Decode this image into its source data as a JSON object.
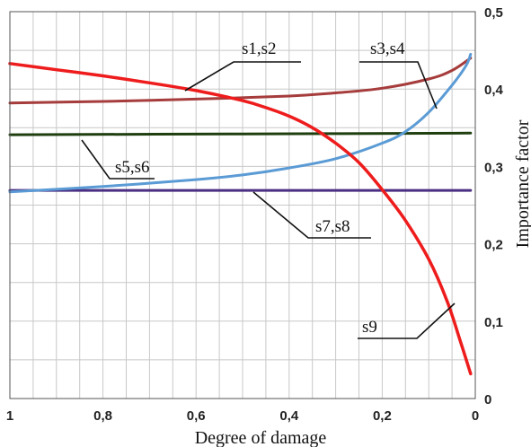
{
  "chart_data": {
    "type": "line",
    "xlabel": "Degree of damage",
    "ylabel": "Importance factor",
    "xlim": [
      1,
      0
    ],
    "ylim": [
      0,
      0.5
    ],
    "x_ticks": [
      "1",
      "0,8",
      "0,6",
      "0,4",
      "0,2",
      "0"
    ],
    "y_ticks": [
      "0",
      "0,1",
      "0,2",
      "0,3",
      "0,4",
      "0,5"
    ],
    "grid": true,
    "series": [
      {
        "name": "s1,s2",
        "color": "#ee1c1c",
        "x": [
          1,
          0.9,
          0.8,
          0.7,
          0.6,
          0.5,
          0.45,
          0.4,
          0.35,
          0.3,
          0.25,
          0.2,
          0.15,
          0.1,
          0.06,
          0.03,
          0.01
        ],
        "y": [
          0.433,
          0.425,
          0.417,
          0.408,
          0.398,
          0.385,
          0.376,
          0.365,
          0.35,
          0.33,
          0.305,
          0.27,
          0.23,
          0.18,
          0.125,
          0.07,
          0.032
        ]
      },
      {
        "name": "s3,s4",
        "color": "#a63c3c",
        "x": [
          1,
          0.8,
          0.6,
          0.4,
          0.3,
          0.2,
          0.1,
          0.05,
          0.01
        ],
        "y": [
          0.382,
          0.384,
          0.387,
          0.391,
          0.395,
          0.401,
          0.413,
          0.424,
          0.44
        ]
      },
      {
        "name": "s5,s6",
        "color": "#1f3f0f",
        "x": [
          1,
          0.5,
          0.01
        ],
        "y": [
          0.341,
          0.342,
          0.343
        ]
      },
      {
        "name": "s7,s8",
        "color": "#4b2f82",
        "x": [
          1,
          0.5,
          0.01
        ],
        "y": [
          0.269,
          0.269,
          0.269
        ]
      },
      {
        "name": "s9",
        "color": "#5b9bd5",
        "x": [
          1,
          0.8,
          0.6,
          0.5,
          0.4,
          0.3,
          0.2,
          0.15,
          0.1,
          0.05,
          0.02,
          0.01
        ],
        "y": [
          0.267,
          0.274,
          0.283,
          0.289,
          0.298,
          0.31,
          0.33,
          0.345,
          0.37,
          0.405,
          0.43,
          0.445
        ]
      }
    ],
    "annotations": [
      {
        "text": "s1,s2"
      },
      {
        "text": "s3,s4"
      },
      {
        "text": "s5,s6"
      },
      {
        "text": "s7,s8"
      },
      {
        "text": "s9"
      }
    ]
  }
}
